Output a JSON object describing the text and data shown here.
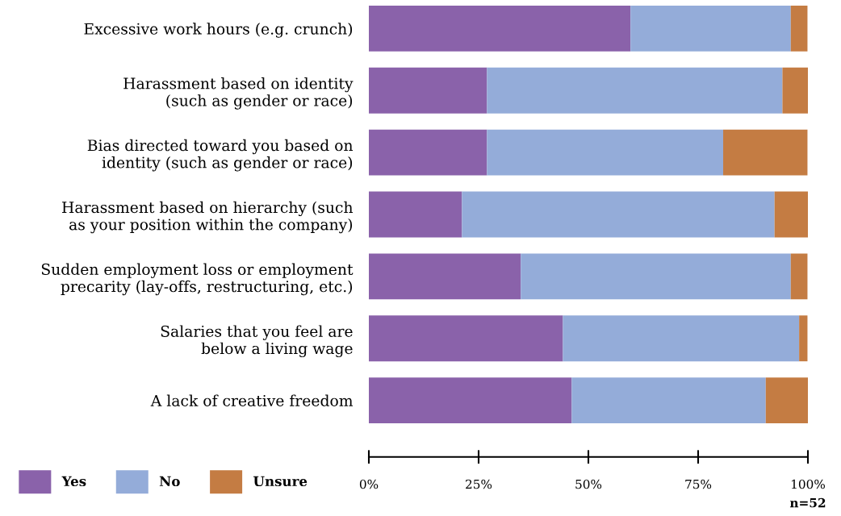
{
  "chart_data": {
    "type": "bar",
    "orientation": "horizontal",
    "stacked": true,
    "categories": [
      "Excessive work hours (e.g. crunch)",
      "Harassment based on identity\n(such as gender or race)",
      "Bias directed toward you based on\nidentity (such as gender or race)",
      "Harassment based on hierarchy (such\nas your position within the company)",
      "Sudden employment loss or employment\nprecarity (lay-offs, restructuring, etc.)",
      "Salaries that you feel are\nbelow a living wage",
      "A lack of creative freedom"
    ],
    "series": [
      {
        "name": "Yes",
        "color": "#8a62aa",
        "values": [
          59.6,
          26.9,
          26.9,
          21.2,
          34.6,
          44.2,
          46.2
        ]
      },
      {
        "name": "No",
        "color": "#94acd9",
        "values": [
          36.5,
          67.3,
          53.8,
          71.2,
          61.5,
          53.8,
          44.2
        ]
      },
      {
        "name": "Unsure",
        "color": "#c47c43",
        "values": [
          3.8,
          5.8,
          19.2,
          7.7,
          3.8,
          1.9,
          9.6
        ]
      }
    ],
    "xlim": [
      0,
      100
    ],
    "xticks": [
      {
        "value": 0,
        "label": "0%"
      },
      {
        "value": 25,
        "label": "25%"
      },
      {
        "value": 50,
        "label": "50%"
      },
      {
        "value": 75,
        "label": "75%"
      },
      {
        "value": 100,
        "label": "100%"
      }
    ],
    "grid": false,
    "legend": "bottom left",
    "annotations": [
      "n=52"
    ]
  }
}
